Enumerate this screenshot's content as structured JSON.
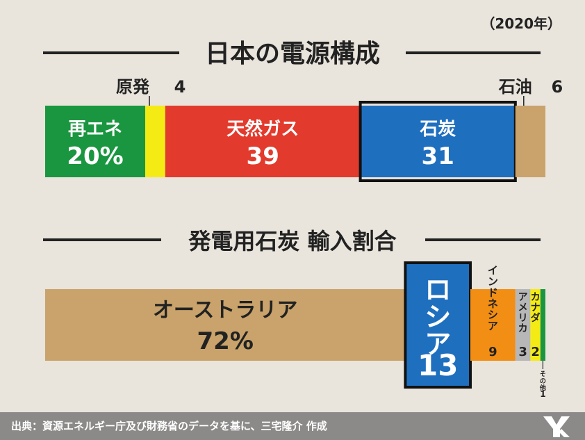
{
  "year_label": "（2020年）",
  "footer": {
    "source": "出典：資源エネルギー庁及び財務省のデータを基に、三宅隆介 作成"
  },
  "chart_data": [
    {
      "type": "bar",
      "title": "日本の電源構成",
      "unit": "%",
      "segments": [
        {
          "name": "再エネ",
          "value": 20,
          "display": "20%",
          "color": "#1a9640",
          "text_color": "#ffffff"
        },
        {
          "name": "原発",
          "value": 4,
          "display": "4",
          "color": "#f5eb14",
          "text_color": "#222222"
        },
        {
          "name": "天然ガス",
          "value": 39,
          "display": "39",
          "color": "#e23b2d",
          "text_color": "#ffffff"
        },
        {
          "name": "石炭",
          "value": 31,
          "display": "31",
          "color": "#1f6fbf",
          "text_color": "#ffffff",
          "highlighted": true
        },
        {
          "name": "石油",
          "value": 6,
          "display": "6",
          "color": "#c9a36b",
          "text_color": "#222222"
        }
      ]
    },
    {
      "type": "bar",
      "title": "発電用石炭 輸入割合",
      "unit": "%",
      "segments": [
        {
          "name": "オーストラリア",
          "value": 72,
          "display": "72%",
          "color": "#c9a36b",
          "text_color": "#222222"
        },
        {
          "name": "ロシア",
          "value": 13,
          "display": "13",
          "color": "#1f6fbf",
          "text_color": "#ffffff",
          "highlighted": true
        },
        {
          "name": "インドネシア",
          "value": 9,
          "display": "9",
          "color": "#f28e13",
          "text_color": "#222222"
        },
        {
          "name": "アメリカ",
          "value": 3,
          "display": "3",
          "color": "#b7b7b7",
          "text_color": "#222222"
        },
        {
          "name": "カナダ",
          "value": 2,
          "display": "2",
          "color": "#f5eb14",
          "text_color": "#222222"
        },
        {
          "name": "その他",
          "value": 1,
          "display": "1",
          "color": "#1a9640",
          "text_color": "#222222"
        }
      ]
    }
  ]
}
